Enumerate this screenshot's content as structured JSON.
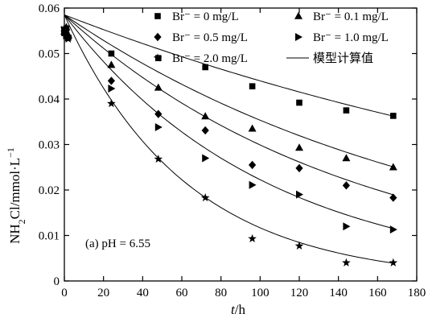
{
  "chart_data": {
    "type": "scatter",
    "xlabel_prefix": "t",
    "xlabel_suffix": "/h",
    "ylabel": "NH2Cl/mmol·L−1",
    "xlim": [
      0,
      180
    ],
    "ylim": [
      0,
      0.06
    ],
    "x_ticks": [
      "0",
      "20",
      "40",
      "60",
      "80",
      "100",
      "120",
      "140",
      "160",
      "180"
    ],
    "y_ticks": [
      "0",
      "0.01",
      "0.02",
      "0.03",
      "0.04",
      "0.05",
      "0.06"
    ],
    "grid": false,
    "legend_position": "top-right",
    "annotation": "(a) pH = 6.55",
    "series": [
      {
        "name": "Br⁻ = 0 mg/L",
        "marker": "square",
        "x": [
          0,
          1,
          2,
          24,
          48,
          72,
          96,
          120,
          144,
          168
        ],
        "y": [
          0.0545,
          0.0555,
          0.0535,
          0.05,
          0.049,
          0.047,
          0.0428,
          0.0392,
          0.0375,
          0.0363
        ],
        "fit_c0": 0.0585,
        "fit_k": 0.00285
      },
      {
        "name": "Br⁻ = 0.1 mg/L",
        "marker": "triangle",
        "x": [
          0,
          1,
          2,
          24,
          48,
          72,
          96,
          120,
          144,
          168
        ],
        "y": [
          0.0548,
          0.0558,
          0.054,
          0.0475,
          0.0425,
          0.0362,
          0.0335,
          0.0293,
          0.027,
          0.025
        ],
        "fit_c0": 0.0585,
        "fit_k": 0.00504
      },
      {
        "name": "Br⁻ = 0.5 mg/L",
        "marker": "diamond",
        "x": [
          0,
          1,
          2,
          24,
          48,
          72,
          96,
          120,
          144,
          168
        ],
        "y": [
          0.055,
          0.0545,
          0.0538,
          0.044,
          0.0367,
          0.0331,
          0.0255,
          0.0248,
          0.021,
          0.0183
        ],
        "fit_c0": 0.0585,
        "fit_k": 0.00671
      },
      {
        "name": "Br⁻ = 1.0 mg/L",
        "marker": "triangle-right",
        "x": [
          0,
          1,
          2,
          24,
          48,
          72,
          96,
          120,
          144,
          168
        ],
        "y": [
          0.0552,
          0.054,
          0.0535,
          0.0423,
          0.0338,
          0.027,
          0.0211,
          0.019,
          0.012,
          0.0113
        ],
        "fit_c0": 0.0585,
        "fit_k": 0.00966
      },
      {
        "name": "Br⁻ = 2.0 mg/L",
        "marker": "star",
        "x": [
          0,
          1,
          2,
          24,
          48,
          72,
          96,
          120,
          144,
          168
        ],
        "y": [
          0.0555,
          0.0538,
          0.0532,
          0.039,
          0.0268,
          0.0183,
          0.0093,
          0.0077,
          0.004,
          0.004
        ],
        "fit_c0": 0.0585,
        "fit_k": 0.0161
      }
    ],
    "fit_legend_label": "模型计算值"
  }
}
